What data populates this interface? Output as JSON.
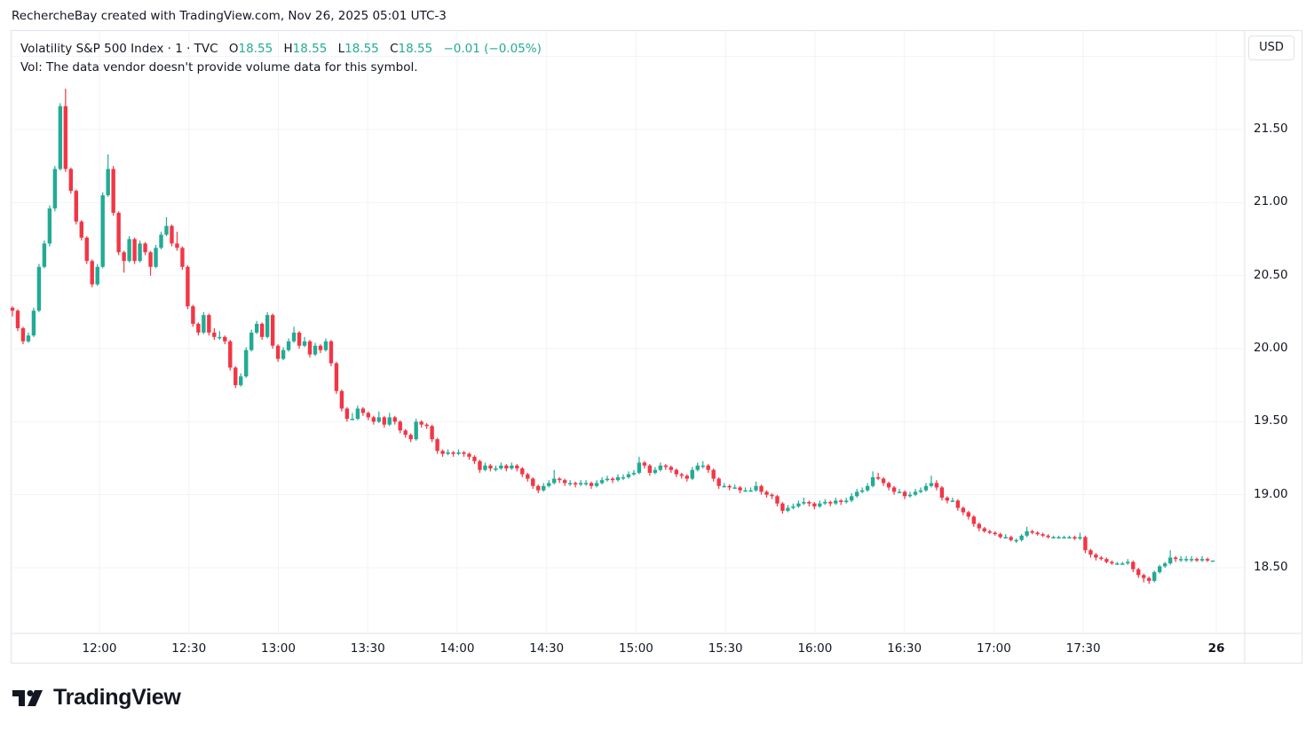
{
  "attribution": "RechercheBay created with TradingView.com, Nov 26, 2025 05:01 UTC-3",
  "legend": {
    "symbol": "Volatility S&P 500 Index · 1 · TVC",
    "open_label": "O",
    "open": "18.55",
    "high_label": "H",
    "high": "18.55",
    "low_label": "L",
    "low": "18.55",
    "close_label": "C",
    "close": "18.55",
    "change": "−0.01 (−0.05%)",
    "volume_note": "Vol: The data vendor doesn't provide volume data for this symbol."
  },
  "currency_button": "USD",
  "logo_text": "TradingView",
  "colors": {
    "up": "#22ab94",
    "down": "#f23645",
    "grid": "#f0f3fa",
    "border": "#e0e3eb"
  },
  "chart_data": {
    "type": "candlestick",
    "interval": "1",
    "y_ticks": [
      "21.50",
      "21.00",
      "20.50",
      "20.00",
      "19.50",
      "19.00",
      "18.50"
    ],
    "x_ticks": [
      "12:00",
      "12:30",
      "13:00",
      "13:30",
      "14:00",
      "14:30",
      "15:00",
      "15:30",
      "16:00",
      "16:30",
      "17:00",
      "17:30",
      "26"
    ],
    "ylim": [
      18.1,
      22.0
    ],
    "grid": true,
    "ohlc": [
      [
        20.28,
        20.29,
        20.22,
        20.26
      ],
      [
        20.26,
        20.27,
        20.12,
        20.14
      ],
      [
        20.14,
        20.15,
        20.03,
        20.05
      ],
      [
        20.05,
        20.11,
        20.04,
        20.09
      ],
      [
        20.09,
        20.28,
        20.08,
        20.26
      ],
      [
        20.26,
        20.58,
        20.25,
        20.56
      ],
      [
        20.56,
        20.74,
        20.55,
        20.72
      ],
      [
        20.72,
        20.98,
        20.7,
        20.96
      ],
      [
        20.96,
        21.25,
        20.94,
        21.23
      ],
      [
        21.23,
        21.68,
        21.22,
        21.66
      ],
      [
        21.66,
        21.78,
        21.21,
        21.23
      ],
      [
        21.23,
        21.24,
        21.06,
        21.08
      ],
      [
        21.08,
        21.09,
        20.85,
        20.87
      ],
      [
        20.87,
        20.88,
        20.74,
        20.76
      ],
      [
        20.76,
        20.77,
        20.58,
        20.6
      ],
      [
        20.6,
        20.61,
        20.42,
        20.44
      ],
      [
        20.44,
        20.58,
        20.43,
        20.56
      ],
      [
        20.56,
        21.07,
        20.55,
        21.05
      ],
      [
        21.05,
        21.33,
        21.04,
        21.23
      ],
      [
        21.23,
        21.25,
        20.91,
        20.93
      ],
      [
        20.93,
        20.94,
        20.64,
        20.66
      ],
      [
        20.66,
        20.67,
        20.52,
        20.6
      ],
      [
        20.6,
        20.77,
        20.59,
        20.75
      ],
      [
        20.75,
        20.76,
        20.58,
        20.6
      ],
      [
        20.6,
        20.74,
        20.59,
        20.72
      ],
      [
        20.72,
        20.73,
        20.64,
        20.66
      ],
      [
        20.66,
        20.67,
        20.5,
        20.56
      ],
      [
        20.56,
        20.71,
        20.55,
        20.69
      ],
      [
        20.69,
        20.8,
        20.68,
        20.78
      ],
      [
        20.78,
        20.9,
        20.77,
        20.84
      ],
      [
        20.84,
        20.85,
        20.7,
        20.72
      ],
      [
        20.72,
        20.8,
        20.67,
        20.69
      ],
      [
        20.69,
        20.7,
        20.54,
        20.56
      ],
      [
        20.56,
        20.57,
        20.27,
        20.29
      ],
      [
        20.29,
        20.3,
        20.15,
        20.17
      ],
      [
        20.17,
        20.18,
        20.09,
        20.11
      ],
      [
        20.11,
        20.25,
        20.1,
        20.23
      ],
      [
        20.23,
        20.24,
        20.09,
        20.11
      ],
      [
        20.11,
        20.14,
        20.06,
        20.08
      ],
      [
        20.08,
        20.12,
        20.06,
        20.08
      ],
      [
        20.08,
        20.09,
        20.03,
        20.05
      ],
      [
        20.05,
        20.06,
        19.85,
        19.87
      ],
      [
        19.87,
        19.88,
        19.73,
        19.75
      ],
      [
        19.75,
        19.83,
        19.74,
        19.81
      ],
      [
        19.81,
        20.01,
        19.8,
        19.99
      ],
      [
        19.99,
        20.13,
        19.98,
        20.11
      ],
      [
        20.11,
        20.19,
        20.1,
        20.17
      ],
      [
        20.17,
        20.18,
        20.06,
        20.08
      ],
      [
        20.08,
        20.25,
        20.07,
        20.23
      ],
      [
        20.23,
        20.24,
        20.0,
        20.02
      ],
      [
        20.02,
        20.03,
        19.91,
        19.93
      ],
      [
        19.93,
        20.01,
        19.92,
        19.99
      ],
      [
        19.99,
        20.07,
        19.98,
        20.05
      ],
      [
        20.05,
        20.15,
        20.04,
        20.11
      ],
      [
        20.11,
        20.12,
        20.0,
        20.02
      ],
      [
        20.02,
        20.08,
        20.01,
        20.05
      ],
      [
        20.05,
        20.06,
        19.94,
        19.96
      ],
      [
        19.96,
        20.04,
        19.95,
        20.02
      ],
      [
        20.02,
        20.03,
        19.97,
        19.99
      ],
      [
        19.99,
        20.07,
        19.98,
        20.05
      ],
      [
        20.05,
        20.06,
        19.88,
        19.9
      ],
      [
        19.9,
        19.91,
        19.69,
        19.71
      ],
      [
        19.71,
        19.72,
        19.57,
        19.59
      ],
      [
        19.59,
        19.6,
        19.5,
        19.52
      ],
      [
        19.52,
        19.56,
        19.51,
        19.52
      ],
      [
        19.52,
        19.61,
        19.51,
        19.59
      ],
      [
        19.59,
        19.6,
        19.54,
        19.56
      ],
      [
        19.56,
        19.57,
        19.51,
        19.53
      ],
      [
        19.53,
        19.54,
        19.48,
        19.5
      ],
      [
        19.5,
        19.57,
        19.49,
        19.53
      ],
      [
        19.53,
        19.54,
        19.46,
        19.48
      ],
      [
        19.48,
        19.56,
        19.47,
        19.53
      ],
      [
        19.53,
        19.54,
        19.48,
        19.5
      ],
      [
        19.5,
        19.51,
        19.42,
        19.44
      ],
      [
        19.44,
        19.45,
        19.39,
        19.41
      ],
      [
        19.41,
        19.42,
        19.36,
        19.38
      ],
      [
        19.38,
        19.52,
        19.37,
        19.5
      ],
      [
        19.5,
        19.51,
        19.46,
        19.48
      ],
      [
        19.48,
        19.49,
        19.45,
        19.47
      ],
      [
        19.47,
        19.48,
        19.36,
        19.38
      ],
      [
        19.38,
        19.39,
        19.28,
        19.3
      ],
      [
        19.3,
        19.31,
        19.26,
        19.28
      ],
      [
        19.28,
        19.31,
        19.27,
        19.29
      ],
      [
        19.29,
        19.3,
        19.26,
        19.28
      ],
      [
        19.28,
        19.31,
        19.27,
        19.29
      ],
      [
        19.29,
        19.3,
        19.26,
        19.28
      ],
      [
        19.28,
        19.29,
        19.24,
        19.26
      ],
      [
        19.26,
        19.27,
        19.21,
        19.23
      ],
      [
        19.23,
        19.24,
        19.15,
        19.17
      ],
      [
        19.17,
        19.22,
        19.16,
        19.2
      ],
      [
        19.2,
        19.21,
        19.16,
        19.18
      ],
      [
        19.18,
        19.2,
        19.16,
        19.18
      ],
      [
        19.18,
        19.22,
        19.17,
        19.2
      ],
      [
        19.2,
        19.21,
        19.16,
        19.18
      ],
      [
        19.18,
        19.22,
        19.17,
        19.2
      ],
      [
        19.2,
        19.21,
        19.16,
        19.18
      ],
      [
        19.18,
        19.19,
        19.12,
        19.14
      ],
      [
        19.14,
        19.15,
        19.09,
        19.11
      ],
      [
        19.11,
        19.12,
        19.04,
        19.06
      ],
      [
        19.06,
        19.07,
        19.01,
        19.03
      ],
      [
        19.03,
        19.08,
        19.02,
        19.06
      ],
      [
        19.06,
        19.1,
        19.05,
        19.08
      ],
      [
        19.08,
        19.17,
        19.07,
        19.11
      ],
      [
        19.11,
        19.12,
        19.08,
        19.1
      ],
      [
        19.1,
        19.11,
        19.06,
        19.08
      ],
      [
        19.08,
        19.1,
        19.06,
        19.08
      ],
      [
        19.08,
        19.09,
        19.05,
        19.07
      ],
      [
        19.07,
        19.1,
        19.06,
        19.08
      ],
      [
        19.08,
        19.1,
        19.06,
        19.08
      ],
      [
        19.08,
        19.09,
        19.04,
        19.06
      ],
      [
        19.06,
        19.1,
        19.05,
        19.08
      ],
      [
        19.08,
        19.12,
        19.07,
        19.1
      ],
      [
        19.1,
        19.13,
        19.09,
        19.11
      ],
      [
        19.11,
        19.12,
        19.08,
        19.1
      ],
      [
        19.1,
        19.14,
        19.09,
        19.12
      ],
      [
        19.12,
        19.14,
        19.1,
        19.12
      ],
      [
        19.12,
        19.16,
        19.11,
        19.14
      ],
      [
        19.14,
        19.17,
        19.13,
        19.15
      ],
      [
        19.15,
        19.26,
        19.14,
        19.22
      ],
      [
        19.22,
        19.23,
        19.18,
        19.2
      ],
      [
        19.2,
        19.21,
        19.13,
        19.15
      ],
      [
        19.15,
        19.19,
        19.14,
        19.17
      ],
      [
        19.17,
        19.22,
        19.16,
        19.2
      ],
      [
        19.2,
        19.21,
        19.17,
        19.19
      ],
      [
        19.19,
        19.2,
        19.15,
        19.17
      ],
      [
        19.17,
        19.18,
        19.12,
        19.14
      ],
      [
        19.14,
        19.15,
        19.11,
        19.13
      ],
      [
        19.13,
        19.14,
        19.09,
        19.11
      ],
      [
        19.11,
        19.19,
        19.1,
        19.17
      ],
      [
        19.17,
        19.22,
        19.16,
        19.2
      ],
      [
        19.2,
        19.23,
        19.18,
        19.2
      ],
      [
        19.2,
        19.21,
        19.15,
        19.17
      ],
      [
        19.17,
        19.18,
        19.09,
        19.11
      ],
      [
        19.11,
        19.12,
        19.04,
        19.06
      ],
      [
        19.06,
        19.08,
        19.05,
        19.06
      ],
      [
        19.06,
        19.07,
        19.03,
        19.05
      ],
      [
        19.05,
        19.07,
        19.04,
        19.05
      ],
      [
        19.05,
        19.06,
        19.01,
        19.03
      ],
      [
        19.03,
        19.05,
        19.02,
        19.03
      ],
      [
        19.03,
        19.05,
        19.02,
        19.03
      ],
      [
        19.03,
        19.09,
        19.02,
        19.06
      ],
      [
        19.06,
        19.07,
        19.0,
        19.02
      ],
      [
        19.02,
        19.03,
        18.98,
        19.0
      ],
      [
        19.0,
        19.01,
        18.97,
        18.99
      ],
      [
        18.99,
        19.0,
        18.92,
        18.94
      ],
      [
        18.94,
        18.95,
        18.87,
        18.89
      ],
      [
        18.89,
        18.93,
        18.88,
        18.91
      ],
      [
        18.91,
        18.94,
        18.9,
        18.92
      ],
      [
        18.92,
        18.96,
        18.91,
        18.94
      ],
      [
        18.94,
        18.98,
        18.93,
        18.95
      ],
      [
        18.95,
        18.96,
        18.92,
        18.94
      ],
      [
        18.94,
        18.95,
        18.9,
        18.92
      ],
      [
        18.92,
        18.96,
        18.91,
        18.94
      ],
      [
        18.94,
        18.97,
        18.93,
        18.95
      ],
      [
        18.95,
        18.96,
        18.92,
        18.94
      ],
      [
        18.94,
        18.98,
        18.93,
        18.96
      ],
      [
        18.96,
        18.97,
        18.93,
        18.95
      ],
      [
        18.95,
        18.98,
        18.94,
        18.96
      ],
      [
        18.96,
        19.01,
        18.95,
        18.99
      ],
      [
        18.99,
        19.04,
        18.98,
        19.02
      ],
      [
        19.02,
        19.05,
        19.01,
        19.03
      ],
      [
        19.03,
        19.08,
        19.02,
        19.06
      ],
      [
        19.06,
        19.16,
        19.05,
        19.12
      ],
      [
        19.12,
        19.15,
        19.1,
        19.11
      ],
      [
        19.11,
        19.12,
        19.06,
        19.08
      ],
      [
        19.08,
        19.09,
        19.03,
        19.05
      ],
      [
        19.05,
        19.06,
        19.0,
        19.02
      ],
      [
        19.02,
        19.04,
        19.01,
        19.02
      ],
      [
        19.02,
        19.03,
        18.97,
        18.99
      ],
      [
        18.99,
        19.02,
        18.98,
        19.0
      ],
      [
        19.0,
        19.04,
        18.99,
        19.02
      ],
      [
        19.02,
        19.05,
        19.01,
        19.03
      ],
      [
        19.03,
        19.08,
        19.02,
        19.06
      ],
      [
        19.06,
        19.13,
        19.05,
        19.08
      ],
      [
        19.08,
        19.1,
        19.03,
        19.05
      ],
      [
        19.05,
        19.06,
        18.96,
        18.98
      ],
      [
        18.98,
        18.99,
        18.94,
        18.96
      ],
      [
        18.96,
        18.98,
        18.95,
        18.96
      ],
      [
        18.96,
        18.97,
        18.89,
        18.91
      ],
      [
        18.91,
        18.92,
        18.86,
        18.88
      ],
      [
        18.88,
        18.89,
        18.83,
        18.85
      ],
      [
        18.85,
        18.86,
        18.78,
        18.8
      ],
      [
        18.8,
        18.81,
        18.75,
        18.77
      ],
      [
        18.77,
        18.78,
        18.74,
        18.75
      ],
      [
        18.75,
        18.76,
        18.73,
        18.74
      ],
      [
        18.74,
        18.75,
        18.72,
        18.73
      ],
      [
        18.73,
        18.74,
        18.7,
        18.71
      ],
      [
        18.71,
        18.73,
        18.7,
        18.71
      ],
      [
        18.71,
        18.72,
        18.68,
        18.69
      ],
      [
        18.69,
        18.7,
        18.67,
        18.69
      ],
      [
        18.69,
        18.73,
        18.68,
        18.72
      ],
      [
        18.72,
        18.78,
        18.71,
        18.75
      ],
      [
        18.75,
        18.76,
        18.73,
        18.74
      ],
      [
        18.74,
        18.75,
        18.72,
        18.73
      ],
      [
        18.73,
        18.74,
        18.71,
        18.72
      ],
      [
        18.72,
        18.73,
        18.7,
        18.71
      ],
      [
        18.71,
        18.72,
        18.7,
        18.71
      ],
      [
        18.71,
        18.72,
        18.7,
        18.71
      ],
      [
        18.71,
        18.72,
        18.7,
        18.71
      ],
      [
        18.71,
        18.72,
        18.7,
        18.71
      ],
      [
        18.71,
        18.72,
        18.69,
        18.7
      ],
      [
        18.7,
        18.74,
        18.69,
        18.71
      ],
      [
        18.71,
        18.72,
        18.6,
        18.62
      ],
      [
        18.62,
        18.63,
        18.57,
        18.59
      ],
      [
        18.59,
        18.6,
        18.55,
        18.57
      ],
      [
        18.57,
        18.58,
        18.55,
        18.56
      ],
      [
        18.56,
        18.57,
        18.53,
        18.54
      ],
      [
        18.54,
        18.55,
        18.52,
        18.53
      ],
      [
        18.53,
        18.54,
        18.52,
        18.53
      ],
      [
        18.53,
        18.54,
        18.52,
        18.53
      ],
      [
        18.53,
        18.56,
        18.52,
        18.54
      ],
      [
        18.54,
        18.55,
        18.47,
        18.49
      ],
      [
        18.49,
        18.5,
        18.43,
        18.45
      ],
      [
        18.45,
        18.46,
        18.4,
        18.43
      ],
      [
        18.43,
        18.44,
        18.39,
        18.41
      ],
      [
        18.41,
        18.48,
        18.4,
        18.47
      ],
      [
        18.47,
        18.52,
        18.46,
        18.51
      ],
      [
        18.51,
        18.54,
        18.5,
        18.53
      ],
      [
        18.53,
        18.62,
        18.52,
        18.57
      ],
      [
        18.57,
        18.58,
        18.54,
        18.56
      ],
      [
        18.56,
        18.58,
        18.54,
        18.56
      ],
      [
        18.56,
        18.58,
        18.54,
        18.56
      ],
      [
        18.56,
        18.58,
        18.54,
        18.56
      ],
      [
        18.56,
        18.57,
        18.54,
        18.55
      ],
      [
        18.55,
        18.58,
        18.54,
        18.56
      ],
      [
        18.56,
        18.57,
        18.54,
        18.55
      ],
      [
        18.55,
        18.55,
        18.55,
        18.55
      ]
    ]
  }
}
